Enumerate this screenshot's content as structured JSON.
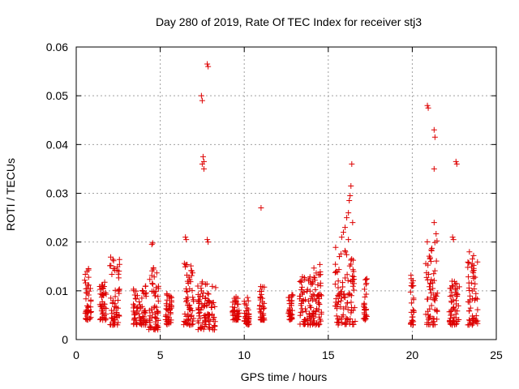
{
  "chart_data": {
    "type": "scatter",
    "title": "Day 280 of 2019, Rate Of TEC Index for receiver stj3",
    "xlabel": "GPS time / hours",
    "ylabel": "ROTI / TECUs",
    "xlim": [
      0,
      25
    ],
    "ylim": [
      0,
      0.06
    ],
    "xticks": [
      0,
      5,
      10,
      15,
      20,
      25
    ],
    "yticks": [
      0,
      0.01,
      0.02,
      0.03,
      0.04,
      0.05,
      0.06
    ],
    "xtick_labels": [
      "0",
      "5",
      "10",
      "15",
      "20",
      "25"
    ],
    "ytick_labels": [
      "0",
      "0.01",
      "0.02",
      "0.03",
      "0.04",
      "0.05",
      "0.06"
    ],
    "grid": true,
    "marker": "plus",
    "color": "#dd0000",
    "clusters": [
      {
        "x": [
          0.5,
          0.9
        ],
        "y": [
          0.004,
          0.015
        ]
      },
      {
        "x": [
          1.4,
          1.8
        ],
        "y": [
          0.004,
          0.012
        ]
      },
      {
        "x": [
          2.0,
          2.6
        ],
        "y": [
          0.003,
          0.017
        ]
      },
      {
        "x": [
          3.4,
          4.2
        ],
        "y": [
          0.003,
          0.011
        ]
      },
      {
        "x": [
          4.3,
          4.9
        ],
        "y": [
          0.002,
          0.015
        ]
      },
      {
        "x": [
          5.3,
          5.7
        ],
        "y": [
          0.003,
          0.01
        ]
      },
      {
        "x": [
          6.4,
          7.0
        ],
        "y": [
          0.003,
          0.017
        ]
      },
      {
        "x": [
          7.2,
          8.3
        ],
        "y": [
          0.002,
          0.012
        ]
      },
      {
        "x": [
          9.3,
          9.7
        ],
        "y": [
          0.004,
          0.009
        ]
      },
      {
        "x": [
          10.0,
          10.3
        ],
        "y": [
          0.003,
          0.009
        ]
      },
      {
        "x": [
          10.9,
          11.2
        ],
        "y": [
          0.004,
          0.011
        ]
      },
      {
        "x": [
          12.6,
          12.9
        ],
        "y": [
          0.004,
          0.01
        ]
      },
      {
        "x": [
          13.3,
          14.1
        ],
        "y": [
          0.003,
          0.013
        ]
      },
      {
        "x": [
          14.1,
          14.6
        ],
        "y": [
          0.003,
          0.016
        ]
      },
      {
        "x": [
          15.4,
          16.6
        ],
        "y": [
          0.003,
          0.019
        ]
      },
      {
        "x": [
          17.1,
          17.3
        ],
        "y": [
          0.004,
          0.013
        ]
      },
      {
        "x": [
          19.9,
          20.1
        ],
        "y": [
          0.003,
          0.015
        ]
      },
      {
        "x": [
          20.8,
          21.5
        ],
        "y": [
          0.003,
          0.022
        ]
      },
      {
        "x": [
          22.2,
          22.8
        ],
        "y": [
          0.003,
          0.012
        ]
      },
      {
        "x": [
          23.3,
          23.9
        ],
        "y": [
          0.003,
          0.018
        ]
      }
    ],
    "outliers": [
      {
        "x": 4.5,
        "y": 0.0195
      },
      {
        "x": 4.55,
        "y": 0.0198
      },
      {
        "x": 6.5,
        "y": 0.021
      },
      {
        "x": 6.55,
        "y": 0.0205
      },
      {
        "x": 7.45,
        "y": 0.05
      },
      {
        "x": 7.5,
        "y": 0.049
      },
      {
        "x": 7.55,
        "y": 0.0375
      },
      {
        "x": 7.6,
        "y": 0.0365
      },
      {
        "x": 7.5,
        "y": 0.036
      },
      {
        "x": 7.6,
        "y": 0.035
      },
      {
        "x": 7.8,
        "y": 0.0565
      },
      {
        "x": 7.85,
        "y": 0.056
      },
      {
        "x": 7.8,
        "y": 0.0205
      },
      {
        "x": 7.85,
        "y": 0.02
      },
      {
        "x": 11.0,
        "y": 0.027
      },
      {
        "x": 15.8,
        "y": 0.021
      },
      {
        "x": 15.9,
        "y": 0.022
      },
      {
        "x": 16.0,
        "y": 0.023
      },
      {
        "x": 16.1,
        "y": 0.025
      },
      {
        "x": 16.2,
        "y": 0.026
      },
      {
        "x": 16.25,
        "y": 0.0285
      },
      {
        "x": 16.3,
        "y": 0.0295
      },
      {
        "x": 16.35,
        "y": 0.0315
      },
      {
        "x": 16.4,
        "y": 0.036
      },
      {
        "x": 16.2,
        "y": 0.0205
      },
      {
        "x": 16.45,
        "y": 0.024
      },
      {
        "x": 20.9,
        "y": 0.048
      },
      {
        "x": 20.95,
        "y": 0.0475
      },
      {
        "x": 21.3,
        "y": 0.043
      },
      {
        "x": 21.35,
        "y": 0.0415
      },
      {
        "x": 21.3,
        "y": 0.035
      },
      {
        "x": 21.3,
        "y": 0.024
      },
      {
        "x": 22.4,
        "y": 0.021
      },
      {
        "x": 22.45,
        "y": 0.0205
      },
      {
        "x": 22.6,
        "y": 0.0365
      },
      {
        "x": 22.65,
        "y": 0.036
      },
      {
        "x": 23.4,
        "y": 0.018
      }
    ]
  }
}
